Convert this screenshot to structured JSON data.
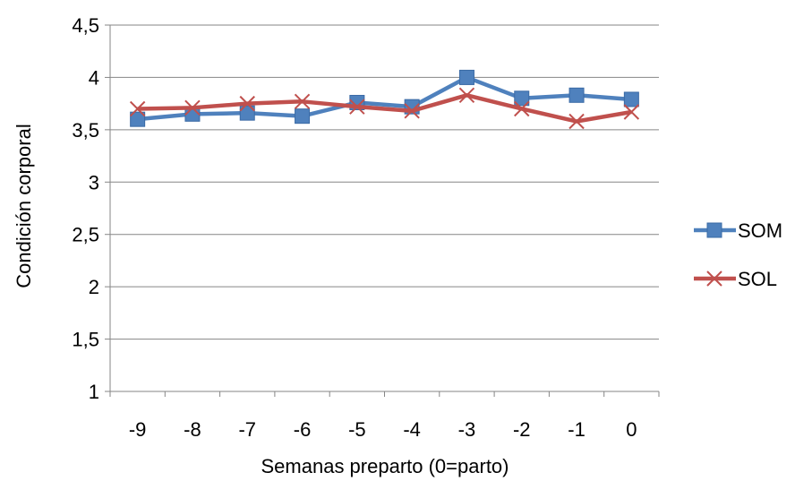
{
  "chart_data": {
    "type": "line",
    "title": "",
    "xlabel": "Semanas preparto (0=parto)",
    "ylabel": "Condición corporal",
    "categories": [
      "-9",
      "-8",
      "-7",
      "-6",
      "-5",
      "-4",
      "-3",
      "-2",
      "-1",
      "0"
    ],
    "ylim": [
      1,
      4.5
    ],
    "yticks": [
      "1",
      "1,5",
      "2",
      "2,5",
      "3",
      "3,5",
      "4",
      "4,5"
    ],
    "grid": "horizontal",
    "legend_position": "right",
    "series": [
      {
        "name": "SOM",
        "color": "#4F81BD",
        "marker": "square",
        "values": [
          3.6,
          3.65,
          3.66,
          3.63,
          3.76,
          3.72,
          4.0,
          3.8,
          3.83,
          3.79
        ]
      },
      {
        "name": "SOL",
        "color": "#C0504D",
        "marker": "x",
        "values": [
          3.7,
          3.71,
          3.75,
          3.77,
          3.72,
          3.68,
          3.83,
          3.7,
          3.58,
          3.67
        ]
      }
    ]
  }
}
